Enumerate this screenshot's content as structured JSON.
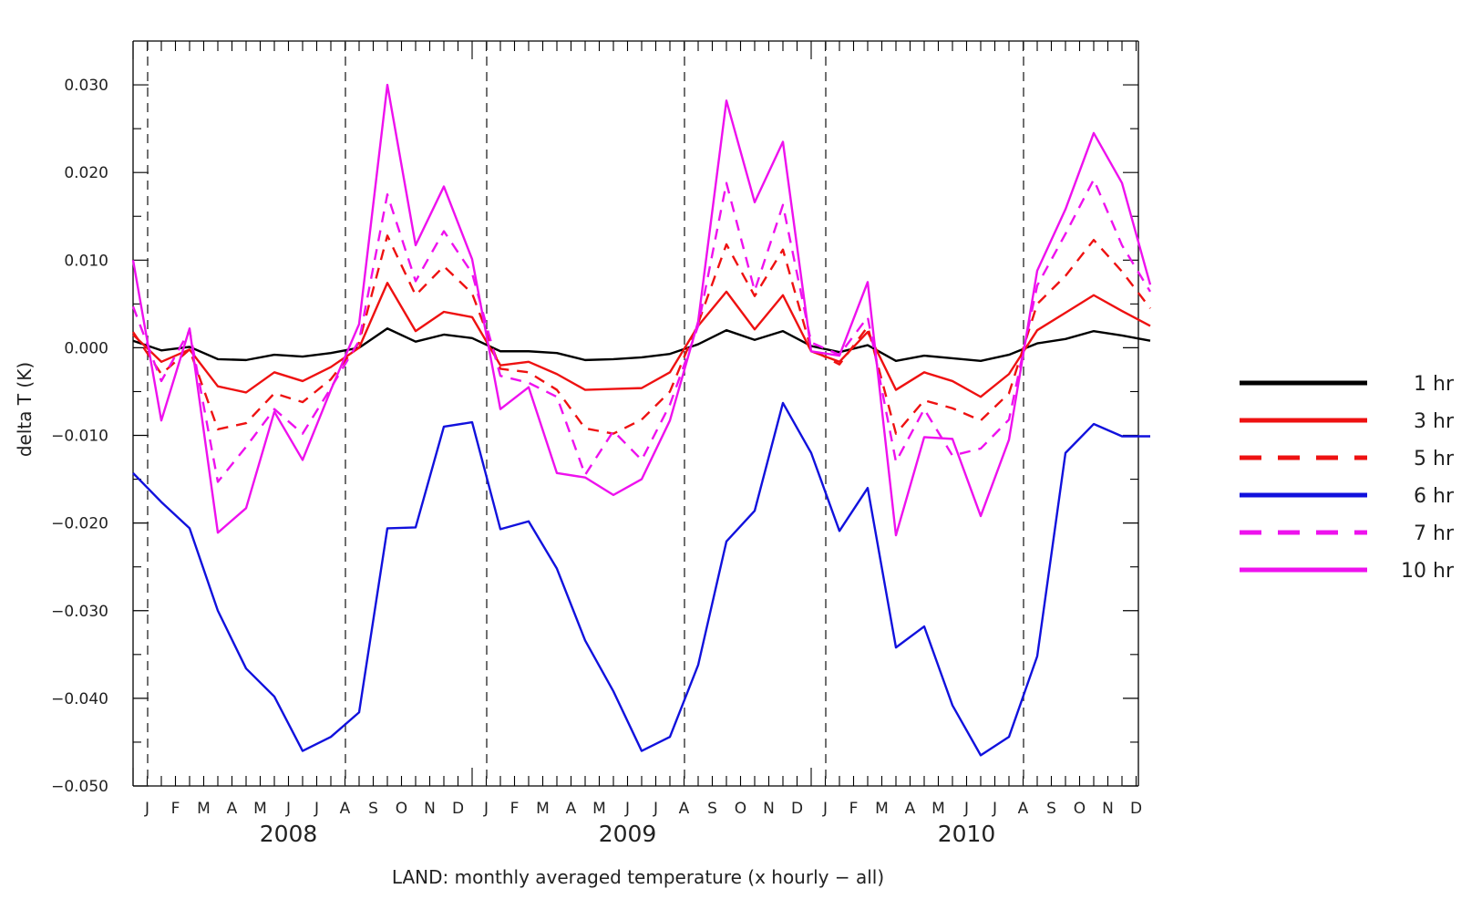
{
  "chart_data": {
    "type": "line",
    "xlabel": "LAND: monthly averaged temperature (x hourly − all)",
    "ylabel": "delta T (K)",
    "ylim": [
      -0.05,
      0.035
    ],
    "yticks": [
      "0.030",
      "0.020",
      "0.010",
      "0.000",
      "−0.010",
      "−0.020",
      "−0.030",
      "−0.040",
      "−0.050"
    ],
    "ytick_values": [
      0.03,
      0.02,
      0.01,
      0.0,
      -0.01,
      -0.02,
      -0.03,
      -0.04,
      -0.05
    ],
    "x_unit": "month",
    "x_range": [
      "2007-12",
      "2010-12"
    ],
    "month_labels": [
      "J",
      "F",
      "M",
      "A",
      "M",
      "J",
      "J",
      "A",
      "S",
      "O",
      "N",
      "D",
      "J",
      "F",
      "M",
      "A",
      "M",
      "J",
      "J",
      "A",
      "S",
      "O",
      "N",
      "D",
      "J",
      "F",
      "M",
      "A",
      "M",
      "J",
      "J",
      "A",
      "S",
      "O",
      "N",
      "D"
    ],
    "month_dates": [
      "2008-01",
      "2008-02",
      "2008-03",
      "2008-04",
      "2008-05",
      "2008-06",
      "2008-07",
      "2008-08",
      "2008-09",
      "2008-10",
      "2008-11",
      "2008-12",
      "2009-01",
      "2009-02",
      "2009-03",
      "2009-04",
      "2009-05",
      "2009-06",
      "2009-07",
      "2009-08",
      "2009-09",
      "2009-10",
      "2009-11",
      "2009-12",
      "2010-01",
      "2010-02",
      "2010-03",
      "2010-04",
      "2010-05",
      "2010-06",
      "2010-07",
      "2010-08",
      "2010-09",
      "2010-10",
      "2010-11",
      "2010-12"
    ],
    "year_labels": [
      {
        "label": "2008",
        "center": "2008-05"
      },
      {
        "label": "2009",
        "center": "2009-05"
      },
      {
        "label": "2010",
        "center": "2010-05"
      }
    ],
    "vertical_dashed_lines": [
      "2008-01",
      "2008-08",
      "2009-01",
      "2009-08",
      "2010-01",
      "2010-08"
    ],
    "grid": false,
    "legend_position": "right",
    "x": [
      "2007-12",
      "2008-01",
      "2008-02",
      "2008-03",
      "2008-04",
      "2008-05",
      "2008-06",
      "2008-07",
      "2008-08",
      "2008-09",
      "2008-10",
      "2008-11",
      "2008-12",
      "2009-01",
      "2009-02",
      "2009-03",
      "2009-04",
      "2009-05",
      "2009-06",
      "2009-07",
      "2009-08",
      "2009-09",
      "2009-10",
      "2009-11",
      "2009-12",
      "2010-01",
      "2010-02",
      "2010-03",
      "2010-04",
      "2010-05",
      "2010-06",
      "2010-07",
      "2010-08",
      "2010-09",
      "2010-10",
      "2010-11",
      "2010-12"
    ],
    "series": [
      {
        "name": "1 hr",
        "color": "#000000",
        "dash": "solid",
        "values": [
          0.0008,
          -0.0003,
          0.0001,
          -0.0013,
          -0.0014,
          -0.0008,
          -0.001,
          -0.0006,
          0.0,
          0.0022,
          0.0007,
          0.0015,
          0.0011,
          -0.0004,
          -0.0004,
          -0.0006,
          -0.0014,
          -0.0013,
          -0.0011,
          -0.0007,
          0.0004,
          0.002,
          0.0009,
          0.0019,
          0.0002,
          -0.0005,
          0.0003,
          -0.0015,
          -0.0009,
          -0.0012,
          -0.0015,
          -0.0008,
          0.0005,
          0.001,
          0.0019,
          0.0014,
          0.0008
        ]
      },
      {
        "name": "3 hr",
        "color": "#ee1111",
        "dash": "solid",
        "values": [
          0.0015,
          -0.0016,
          -0.0002,
          -0.0044,
          -0.0051,
          -0.0028,
          -0.0038,
          -0.0022,
          0.0,
          0.0074,
          0.0019,
          0.0041,
          0.0035,
          -0.002,
          -0.0016,
          -0.003,
          -0.0048,
          -0.0047,
          -0.0046,
          -0.0028,
          0.0025,
          0.0064,
          0.0021,
          0.006,
          -0.0004,
          -0.0016,
          0.0018,
          -0.0048,
          -0.0028,
          -0.0038,
          -0.0056,
          -0.003,
          0.002,
          0.004,
          0.006,
          0.0042,
          0.0025
        ]
      },
      {
        "name": "5 hr",
        "color": "#ee1111",
        "dash": "dashed",
        "values": [
          0.0018,
          -0.003,
          -0.0002,
          -0.0093,
          -0.0086,
          -0.0052,
          -0.0062,
          -0.0036,
          0.0006,
          0.0128,
          0.006,
          0.0093,
          0.0062,
          -0.0024,
          -0.0028,
          -0.0048,
          -0.0092,
          -0.0098,
          -0.0082,
          -0.005,
          0.0028,
          0.0118,
          0.0059,
          0.0112,
          -0.0002,
          -0.0019,
          0.0024,
          -0.0098,
          -0.006,
          -0.0069,
          -0.0083,
          -0.0052,
          0.005,
          0.0082,
          0.0123,
          0.0087,
          0.0045
        ]
      },
      {
        "name": "6 hr",
        "color": "#1111dd",
        "dash": "solid",
        "values": [
          -0.0143,
          -0.0176,
          -0.0206,
          -0.03,
          -0.0366,
          -0.0398,
          -0.046,
          -0.0444,
          -0.0416,
          -0.0206,
          -0.0205,
          -0.009,
          -0.0085,
          -0.0207,
          -0.0198,
          -0.0252,
          -0.0334,
          -0.0392,
          -0.046,
          -0.0444,
          -0.0362,
          -0.0221,
          -0.0186,
          -0.0063,
          -0.012,
          -0.0209,
          -0.016,
          -0.0342,
          -0.0318,
          -0.0408,
          -0.0465,
          -0.0444,
          -0.0352,
          -0.012,
          -0.0087,
          -0.0101,
          -0.0101
        ]
      },
      {
        "name": "7 hr",
        "color": "#ee11ee",
        "dash": "dashed",
        "values": [
          0.0047,
          -0.0038,
          0.002,
          -0.0153,
          -0.0113,
          -0.007,
          -0.0098,
          -0.0046,
          0.0008,
          0.0175,
          0.0076,
          0.0133,
          0.0085,
          -0.0032,
          -0.004,
          -0.0056,
          -0.0145,
          -0.0095,
          -0.0128,
          -0.0065,
          0.0025,
          0.0188,
          0.0065,
          0.0163,
          0.0006,
          -0.0008,
          0.0035,
          -0.013,
          -0.007,
          -0.0123,
          -0.0115,
          -0.0082,
          0.0071,
          0.013,
          0.0192,
          0.0117,
          0.0064
        ]
      },
      {
        "name": "10 hr",
        "color": "#ee11ee",
        "dash": "solid",
        "values": [
          0.01,
          -0.0083,
          0.0022,
          -0.0211,
          -0.0183,
          -0.0073,
          -0.0128,
          -0.0048,
          0.0027,
          0.03,
          0.0117,
          0.0184,
          0.0101,
          -0.007,
          -0.0045,
          -0.0143,
          -0.0148,
          -0.0168,
          -0.015,
          -0.0083,
          0.003,
          0.0282,
          0.0166,
          0.0235,
          -0.0004,
          -0.0009,
          0.0075,
          -0.0214,
          -0.0102,
          -0.0104,
          -0.0192,
          -0.0105,
          0.0088,
          0.0158,
          0.0245,
          0.0188,
          0.0072
        ]
      }
    ]
  }
}
